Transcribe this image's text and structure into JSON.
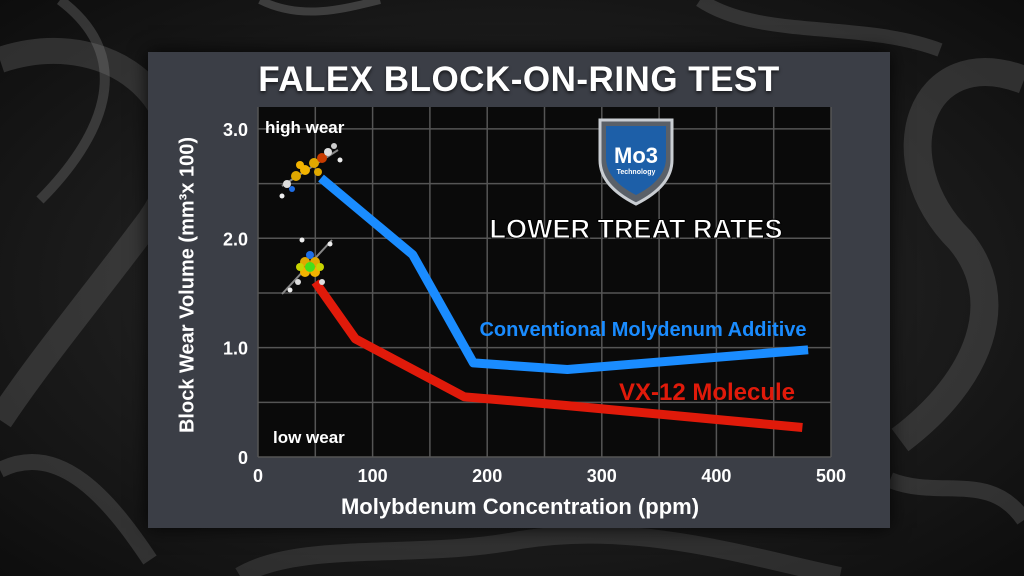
{
  "slide": {
    "title": "FALEX BLOCK-ON-RING TEST",
    "headline": "LOWER TREAT RATES",
    "logo_text": "Mo3",
    "logo_subtext": "Technology",
    "high_wear_label": "high wear",
    "low_wear_label": "low wear"
  },
  "colors": {
    "plot_background": "#0a0a0a",
    "grid": "#555555",
    "conventional": "#1a8cff",
    "vx12": "#e01a0a",
    "panel": "#3b3e46"
  },
  "chart_data": {
    "type": "line",
    "title": "FALEX BLOCK-ON-RING TEST",
    "xlabel": "Molybdenum Concentration (ppm)",
    "ylabel": "Block Wear Volume (mm³x 100)",
    "xlim": [
      0,
      500
    ],
    "ylim": [
      0,
      3.2
    ],
    "x_ticks": [
      "0",
      "100",
      "200",
      "300",
      "400",
      "500"
    ],
    "y_ticks": [
      "0",
      "1.0",
      "2.0",
      "3.0"
    ],
    "grid": true,
    "series": [
      {
        "name": "Conventional Molydenum Additive",
        "color": "#1a8cff",
        "points": [
          [
            55,
            2.55
          ],
          [
            135,
            1.85
          ],
          [
            188,
            0.86
          ],
          [
            270,
            0.8
          ],
          [
            480,
            0.98
          ]
        ]
      },
      {
        "name": "VX-12 Molecule",
        "color": "#e01a0a",
        "points": [
          [
            50,
            1.6
          ],
          [
            85,
            1.08
          ],
          [
            180,
            0.55
          ],
          [
            270,
            0.47
          ],
          [
            475,
            0.27
          ]
        ]
      }
    ]
  }
}
